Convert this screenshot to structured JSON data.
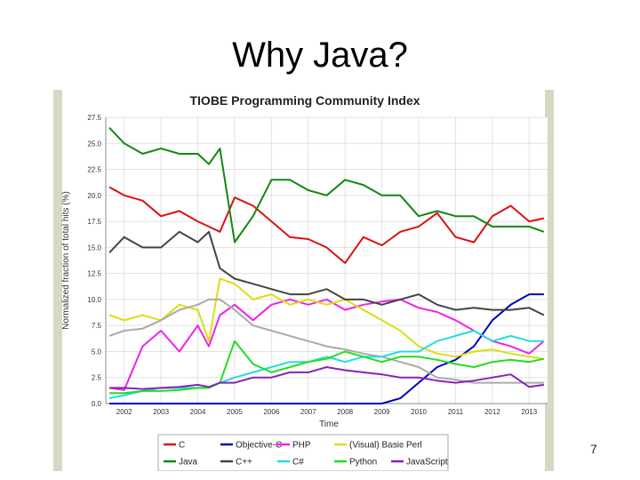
{
  "slide": {
    "title": "Why Java?",
    "page_number": "7"
  },
  "chart_data": {
    "type": "line",
    "title": "TIOBE Programming Community Index",
    "xlabel": "Time",
    "ylabel": "Normalized fraction of total hits (%)",
    "xlim": [
      2001.5,
      2013.5
    ],
    "ylim": [
      0,
      27.5
    ],
    "x_ticks": [
      "2002",
      "2003",
      "2004",
      "2005",
      "2006",
      "2007",
      "2008",
      "2009",
      "2010",
      "2011",
      "2012",
      "2013"
    ],
    "y_ticks": [
      "0.0",
      "2.5",
      "5.0",
      "7.5",
      "10.0",
      "12.5",
      "15.0",
      "17.5",
      "20.0",
      "22.5",
      "25.0",
      "27.5"
    ],
    "grid": true,
    "legend_position": "bottom",
    "x": [
      2001.6,
      2002,
      2002.5,
      2003,
      2003.5,
      2004,
      2004.3,
      2004.6,
      2005,
      2005.5,
      2006,
      2006.5,
      2007,
      2007.5,
      2008,
      2008.5,
      2009,
      2009.5,
      2010,
      2010.5,
      2011,
      2011.5,
      2012,
      2012.5,
      2013,
      2013.4
    ],
    "series": [
      {
        "name": "C",
        "color": "#dd1111",
        "values": [
          20.8,
          20,
          19.5,
          18,
          18.5,
          17.5,
          17,
          16.5,
          19.8,
          19,
          17.5,
          16,
          15.8,
          15,
          13.5,
          16,
          15.2,
          16.5,
          17,
          18.3,
          16,
          15.5,
          18,
          19,
          17.5,
          17.8
        ]
      },
      {
        "name": "Objective-C",
        "color": "#0000bb",
        "values": [
          0,
          0,
          0,
          0,
          0,
          0,
          0,
          0,
          0,
          0,
          0,
          0,
          0,
          0,
          0,
          0,
          0,
          0.5,
          2,
          3.5,
          4.2,
          5.5,
          8,
          9.5,
          10.5,
          10.5
        ]
      },
      {
        "name": "PHP",
        "color": "#ee22ee",
        "values": [
          1.5,
          1.3,
          5.5,
          7,
          5,
          7.5,
          5.5,
          8.5,
          9.5,
          8,
          9.5,
          10,
          9.5,
          10,
          9,
          9.5,
          9.8,
          10,
          9.2,
          8.8,
          8,
          7,
          6,
          5.5,
          4.8,
          6
        ]
      },
      {
        "name": "(Visual) Basic",
        "color": "#dddd11",
        "values": [
          8.5,
          8,
          8.5,
          8,
          9.5,
          9,
          6,
          12,
          11.5,
          10,
          10.5,
          9.5,
          10,
          9.5,
          10,
          9,
          8,
          7,
          5.5,
          4.8,
          4.5,
          5,
          5.2,
          4.8,
          4.5,
          4.3
        ]
      },
      {
        "name": "Perl",
        "color": "#aaaaaa",
        "values": [
          6.5,
          7,
          7.2,
          8,
          9,
          9.5,
          10,
          10,
          9,
          7.5,
          7,
          6.5,
          6,
          5.5,
          5.2,
          4.8,
          4.5,
          4,
          3.5,
          2.5,
          2.3,
          2,
          2,
          2,
          2,
          2
        ]
      },
      {
        "name": "Java",
        "color": "#118811",
        "values": [
          26.5,
          25,
          24,
          24.5,
          24,
          24,
          23,
          24.5,
          15.5,
          18,
          21.5,
          21.5,
          20.5,
          20,
          21.5,
          21,
          20,
          20,
          18,
          18.5,
          18,
          18,
          17,
          17,
          17,
          16.5
        ]
      },
      {
        "name": "C++",
        "color": "#444444",
        "values": [
          14.5,
          16,
          15,
          15,
          16.5,
          15.5,
          16.5,
          13,
          12,
          11.5,
          11,
          10.5,
          10.5,
          11,
          10,
          10,
          9.5,
          10,
          10.5,
          9.5,
          9,
          9.2,
          9,
          9,
          9.2,
          8.5
        ]
      },
      {
        "name": "C#",
        "color": "#22dddd",
        "values": [
          0.5,
          0.8,
          1.2,
          1.5,
          1.5,
          1.5,
          1.5,
          2,
          2.5,
          3,
          3.5,
          4,
          4,
          4.5,
          4,
          4.5,
          4.5,
          5,
          5,
          6,
          6.5,
          7,
          6,
          6.5,
          6,
          6
        ]
      },
      {
        "name": "Python",
        "color": "#22dd22",
        "values": [
          1,
          1,
          1.2,
          1.2,
          1.3,
          1.5,
          1.5,
          2,
          6,
          3.8,
          3,
          3.5,
          4,
          4.3,
          5,
          4.5,
          4,
          4.5,
          4.5,
          4.2,
          3.8,
          3.5,
          4,
          4.2,
          4,
          4.3
        ]
      },
      {
        "name": "JavaScript",
        "color": "#8822bb",
        "values": [
          1.5,
          1.5,
          1.4,
          1.5,
          1.6,
          1.8,
          1.6,
          2,
          2,
          2.5,
          2.5,
          3,
          3,
          3.5,
          3.2,
          3,
          2.8,
          2.5,
          2.5,
          2.2,
          2,
          2.2,
          2.5,
          2.8,
          1.6,
          1.8
        ]
      }
    ]
  }
}
